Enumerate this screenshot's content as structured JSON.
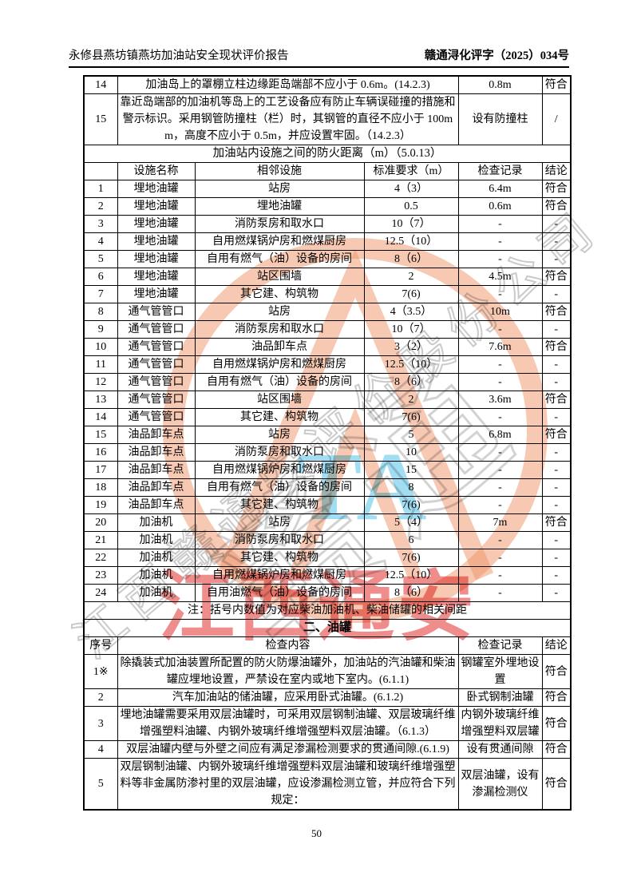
{
  "header": {
    "left_title": "永修县燕坊镇燕坊加油站安全现状评价报告",
    "right_code": "赣通浔化评字（2025）034号"
  },
  "continuation_table": {
    "rows": [
      {
        "no": "14",
        "content": "加油岛上的罩棚立柱边缘距岛端部不应小于 0.6m。(14.2.3)",
        "record": "0.8m",
        "conclusion": "符合"
      },
      {
        "no": "15",
        "content": "靠近岛端部的加油机等岛上的工艺设备应有防止车辆误碰撞的措施和警示标识。采用钢管防撞柱（栏）时，其钢管的直径不应小于 100mm，高度不应小于 0.5m，并应设置牢固。（14.2.3）",
        "record": "设有防撞柱",
        "conclusion": "/"
      }
    ]
  },
  "fire_distance_table": {
    "title": "加油站内设施之间的防火距离（m）（5.0.13）",
    "columns": [
      "",
      "设施名称",
      "相邻设施",
      "标准要求（m）",
      "检查记录",
      "结论"
    ],
    "rows": [
      [
        "1",
        "埋地油罐",
        "站房",
        "4（3）",
        "6.4m",
        "符合"
      ],
      [
        "2",
        "埋地油罐",
        "埋地油罐",
        "0.5",
        "0.6m",
        "符合"
      ],
      [
        "3",
        "埋地油罐",
        "消防泵房和取水口",
        "10（7）",
        "-",
        "-"
      ],
      [
        "4",
        "埋地油罐",
        "自用燃煤锅炉房和燃煤厨房",
        "12.5（10）",
        "-",
        "-"
      ],
      [
        "5",
        "埋地油罐",
        "自用有燃气（油）设备的房间",
        "8（6）",
        "-",
        "-"
      ],
      [
        "6",
        "埋地油罐",
        "站区围墙",
        "2",
        "4.5m",
        "符合"
      ],
      [
        "7",
        "埋地油罐",
        "其它建、构筑物",
        "7(6)",
        "-",
        "-"
      ],
      [
        "8",
        "通气管管口",
        "站房",
        "4（3.5）",
        "10m",
        "符合"
      ],
      [
        "9",
        "通气管管口",
        "消防泵房和取水口",
        "10（7）",
        "-",
        "-"
      ],
      [
        "10",
        "通气管管口",
        "油品卸车点",
        "3（2）",
        "7.6m",
        "符合"
      ],
      [
        "11",
        "通气管管口",
        "自用燃煤锅炉房和燃煤厨房",
        "12.5（10）",
        "-",
        "-"
      ],
      [
        "12",
        "通气管管口",
        "自用有燃气（油）设备的房间",
        "8（6）",
        "-",
        "-"
      ],
      [
        "13",
        "通气管管口",
        "站区围墙",
        "2",
        "3.6m",
        "符合"
      ],
      [
        "14",
        "通气管管口",
        "其它建、构筑物",
        "7(6)",
        "-",
        "-"
      ],
      [
        "15",
        "油品卸车点",
        "站房",
        "5",
        "6.8m",
        "符合"
      ],
      [
        "16",
        "油品卸车点",
        "消防泵房和取水口",
        "10",
        "-",
        "-"
      ],
      [
        "17",
        "油品卸车点",
        "自用燃煤锅炉房和燃煤厨房",
        "15",
        "-",
        "-"
      ],
      [
        "18",
        "油品卸车点",
        "自用有燃气（油）设备的房间",
        "8",
        "-",
        "-"
      ],
      [
        "19",
        "油品卸车点",
        "其它建、构筑物",
        "7(6)",
        "-",
        "-"
      ],
      [
        "20",
        "加油机",
        "站房",
        "5（4）",
        "7m",
        "符合"
      ],
      [
        "21",
        "加油机",
        "消防泵房和取水口",
        "6",
        "-",
        "-"
      ],
      [
        "22",
        "加油机",
        "其它建、构筑物",
        "7(6)",
        "-",
        "-"
      ],
      [
        "23",
        "加油机",
        "自用燃煤锅炉房和燃煤厨房",
        "12.5（10）",
        "-",
        "-"
      ],
      [
        "24",
        "加油机",
        "自用油燃气（油）设备的房间",
        "8（6）",
        "-",
        "-"
      ]
    ],
    "note": "注：括号内数值为对应柴油加油机、柴油储罐的相关间距"
  },
  "tank_section": {
    "title": "二、油罐",
    "columns": [
      "序号",
      "检查内容",
      "检查记录",
      "结论"
    ],
    "rows": [
      {
        "no": "1※",
        "content": "除撬装式加油装置所配置的防火防爆油罐外，加油站的汽油罐和柴油罐应埋地设置，严禁设在室内或地下室内。(6.1.1)",
        "record": "钢罐室外埋地设置",
        "conclusion": "符合",
        "bold": true
      },
      {
        "no": "2",
        "content": "汽车加油站的储油罐，应采用卧式油罐。(6.1.2)",
        "record": "卧式钢制油罐",
        "conclusion": "符合",
        "bold": false
      },
      {
        "no": "3",
        "content": "埋地油罐需要采用双层油罐时，可采用双层钢制油罐、双层玻璃纤维增强塑料油罐、内钢外玻璃纤维增强塑料双层油罐。（6.1.3）",
        "record": "内钢外玻璃纤维增强塑料双层罐",
        "conclusion": "符合",
        "bold": false
      },
      {
        "no": "4",
        "content": "双层油罐内壁与外壁之间应有满足渗漏检测要求的贯通间隙.(6.1.9)",
        "record": "设有贯通间隙",
        "conclusion": "符合",
        "bold": false
      },
      {
        "no": "5",
        "content": "双层钢制油罐、内钢外玻璃纤维增强塑料双层油罐和玻璃纤维增强塑料等非金属防渗衬里的双层油罐，应设渗漏检测立管，并应符合下列规定：",
        "record": "双层油罐，设有渗漏检测仪",
        "conclusion": "符合",
        "bold": false
      }
    ]
  },
  "footer": {
    "page_number": "50"
  },
  "watermark": {
    "red_text": "江西通安",
    "cyan_text": "TA",
    "big_outline_text": "赣通",
    "diagonal_company_text": "江西赣通安评价股份公司",
    "colors": {
      "orange": "#f09468",
      "red": "#e0302c",
      "cyan": "#64c8eb",
      "gray": "#9e9e9e"
    }
  }
}
